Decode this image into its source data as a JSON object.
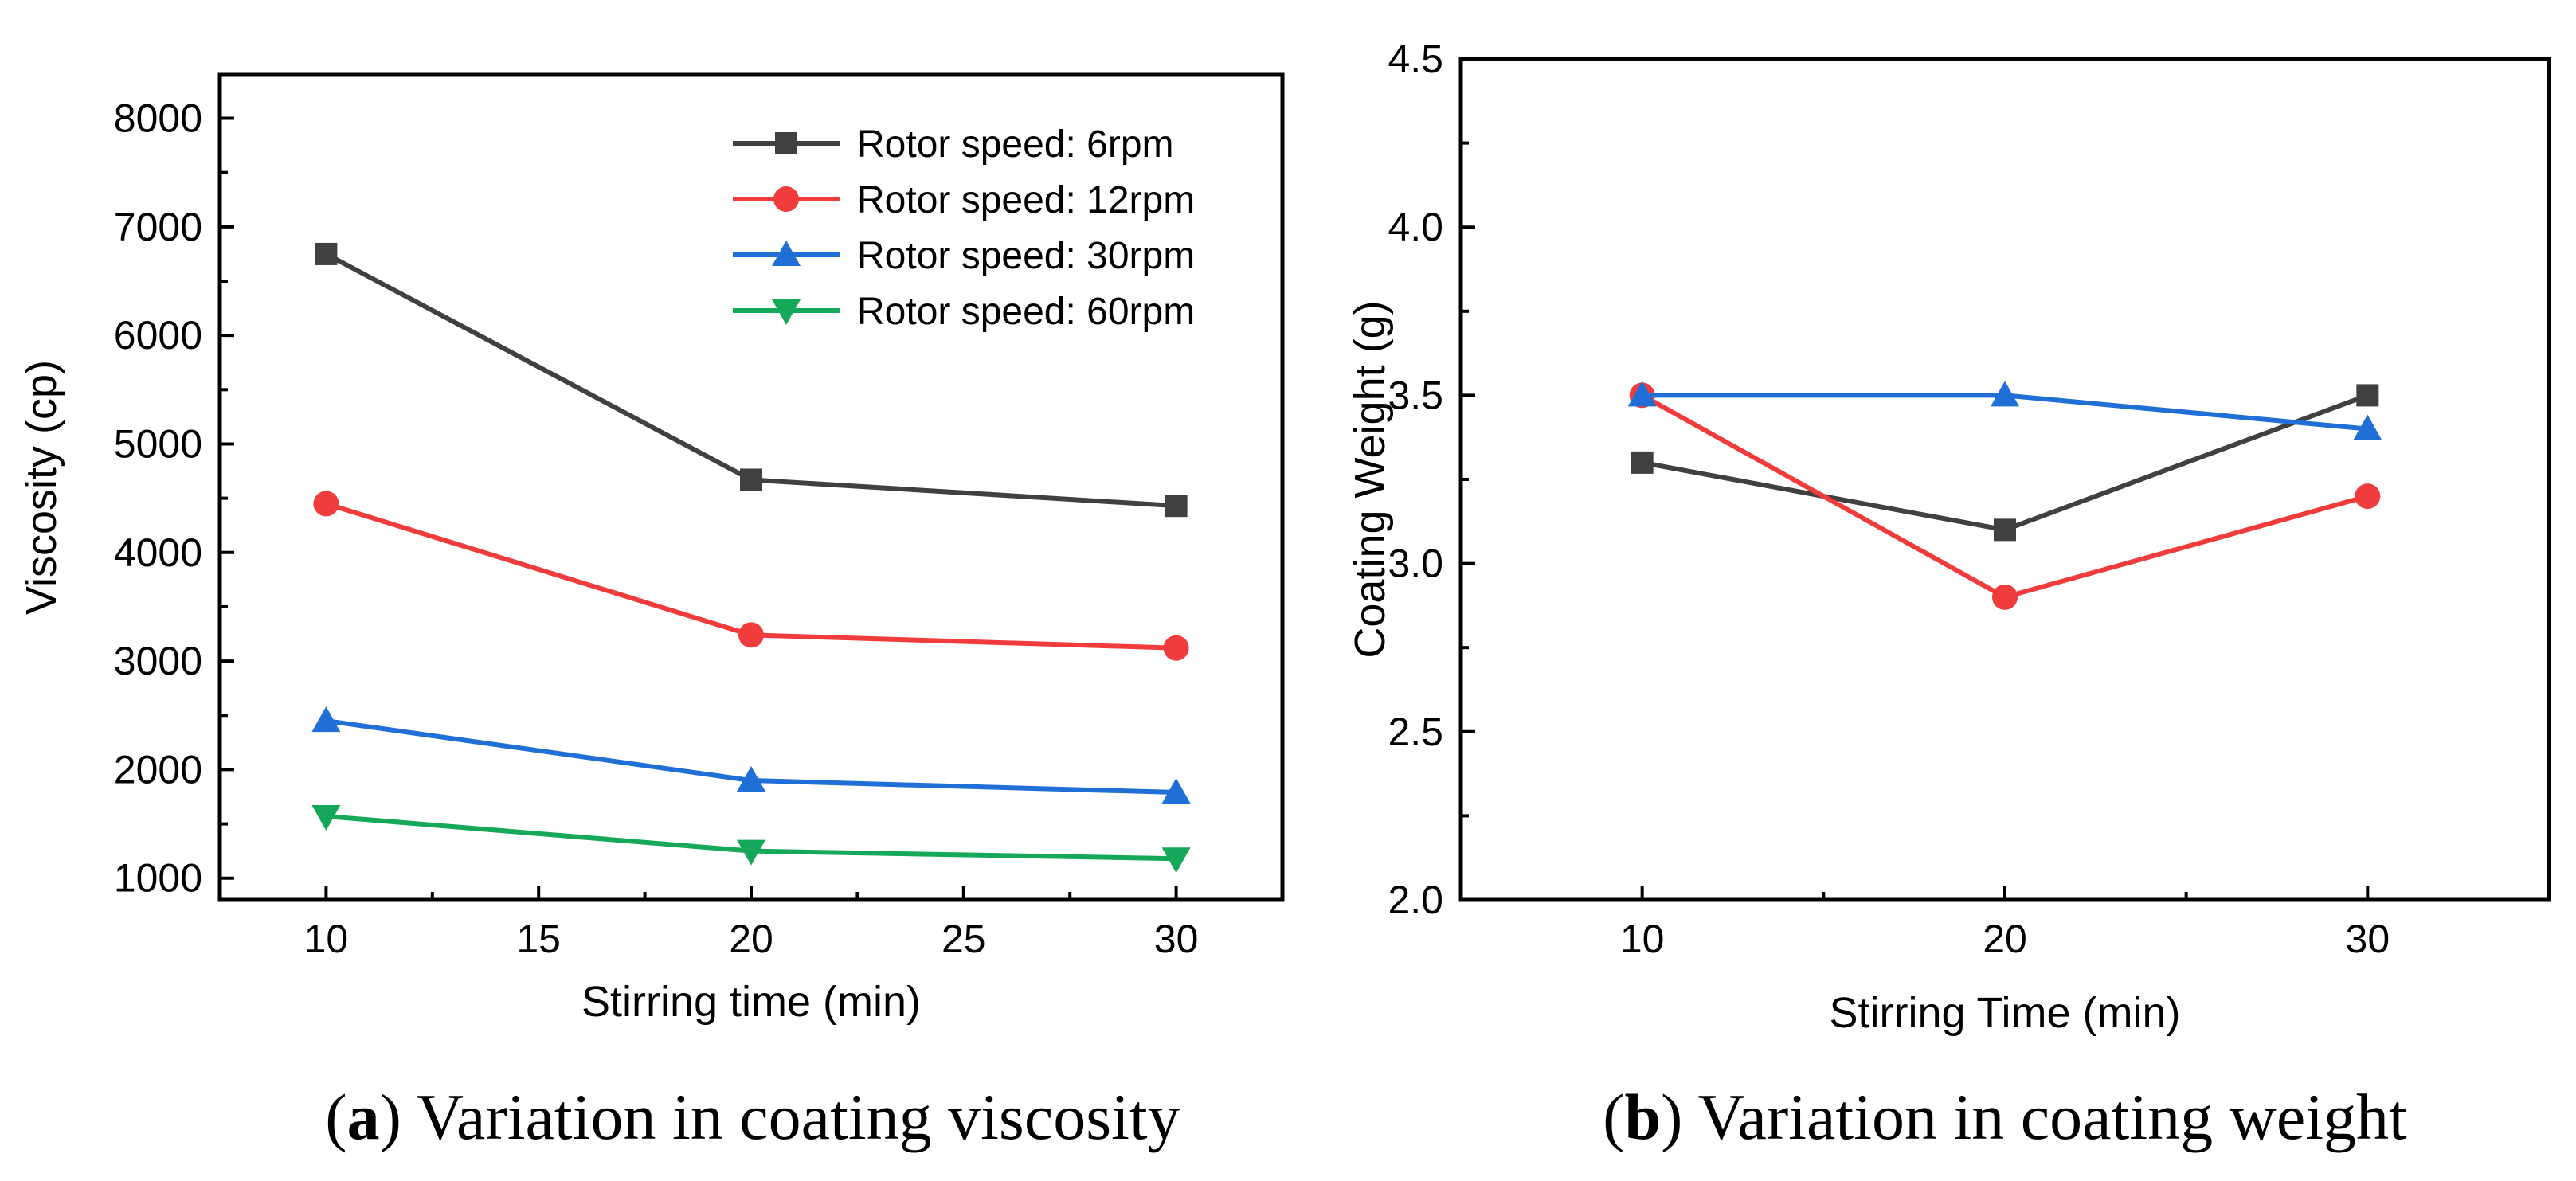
{
  "chart_data": [
    {
      "type": "line",
      "panel": "a",
      "caption_prefix": "(",
      "caption_letter": "a",
      "caption_text": ") Variation in coating viscosity",
      "xlabel": "Stirring time (min)",
      "ylabel": "Viscosity (cp)",
      "xlim": [
        7.5,
        32.5
      ],
      "ylim": [
        800,
        8400
      ],
      "xticks": [
        10,
        15,
        20,
        25,
        30
      ],
      "yticks": [
        1000,
        2000,
        3000,
        4000,
        5000,
        6000,
        7000,
        8000
      ],
      "x": [
        10,
        20,
        30
      ],
      "legend_position": "top-right",
      "series": [
        {
          "name": "Rotor speed: 6rpm",
          "color": "#404040",
          "marker": "square",
          "values": [
            6750,
            4670,
            4430
          ]
        },
        {
          "name": "Rotor speed: 12rpm",
          "color": "#f03c3c",
          "marker": "circle",
          "values": [
            4450,
            3240,
            3120
          ]
        },
        {
          "name": "Rotor speed: 30rpm",
          "color": "#1f6fd6",
          "marker": "triangle-up",
          "values": [
            2450,
            1900,
            1790
          ]
        },
        {
          "name": "Rotor speed: 60rpm",
          "color": "#16a85a",
          "marker": "triangle-down",
          "values": [
            1570,
            1250,
            1180
          ]
        }
      ]
    },
    {
      "type": "line",
      "panel": "b",
      "caption_prefix": "(",
      "caption_letter": "b",
      "caption_text": ") Variation in coating weight",
      "xlabel": "Stirring Time (min)",
      "ylabel": "Coating Weight (g)",
      "xlim": [
        5,
        35
      ],
      "ylim": [
        2.0,
        4.5
      ],
      "xticks": [
        10,
        20,
        30
      ],
      "yticks": [
        2.0,
        2.5,
        3.0,
        3.5,
        4.0,
        4.5
      ],
      "ytick_labels": [
        "2.0",
        "2.5",
        "3.0",
        "3.5",
        "4.0",
        "4.5"
      ],
      "x": [
        10,
        20,
        30
      ],
      "series": [
        {
          "name": "Rotor speed: 6rpm",
          "color": "#404040",
          "marker": "square",
          "values": [
            3.3,
            3.1,
            3.5
          ]
        },
        {
          "name": "Rotor speed: 12rpm",
          "color": "#f03c3c",
          "marker": "circle",
          "values": [
            3.5,
            2.9,
            3.2
          ]
        },
        {
          "name": "Rotor speed: 30rpm",
          "color": "#1f6fd6",
          "marker": "triangle-up",
          "values": [
            3.5,
            3.5,
            3.4
          ]
        }
      ]
    }
  ]
}
